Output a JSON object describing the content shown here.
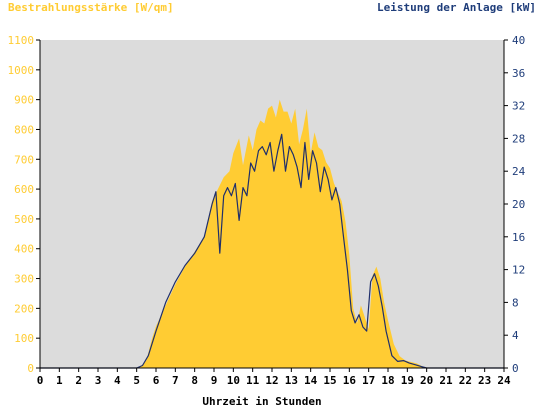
{
  "chart_data": {
    "type": "area",
    "ylabel_left": "Bestrahlungsstärke [W/qm]",
    "ylabel_right": "Leistung der Anlage [kW]",
    "xlabel": "Uhrzeit in Stunden",
    "xlim": [
      0,
      24
    ],
    "ylim_left": [
      0,
      1100
    ],
    "ylim_right": [
      0,
      40
    ],
    "x_ticks": [
      "0",
      "1",
      "2",
      "3",
      "4",
      "5",
      "6",
      "7",
      "8",
      "9",
      "10",
      "11",
      "12",
      "13",
      "14",
      "15",
      "16",
      "17",
      "18",
      "19",
      "20",
      "21",
      "22",
      "23",
      "24"
    ],
    "y_left_ticks": [
      "0",
      "100",
      "200",
      "300",
      "400",
      "500",
      "600",
      "700",
      "800",
      "900",
      "1000",
      "1100"
    ],
    "y_right_ticks": [
      "0",
      "4",
      "8",
      "12",
      "16",
      "20",
      "24",
      "28",
      "32",
      "36",
      "40"
    ],
    "grid": false,
    "colors": {
      "irradiance_fill": "#ffcc33",
      "power_line": "#1f2f6b",
      "left_axis_text": "#ffcc33",
      "right_axis_text": "#1f3d7a",
      "plot_background": "#dcdcdc"
    },
    "series": [
      {
        "type": "area",
        "axis": "left",
        "x": [
          0,
          5.0,
          5.2,
          5.5,
          5.8,
          6.0,
          6.5,
          7.0,
          7.5,
          8.0,
          8.5,
          8.9,
          9.2,
          9.5,
          9.8,
          10.0,
          10.3,
          10.5,
          10.8,
          11.0,
          11.2,
          11.4,
          11.6,
          11.8,
          12.0,
          12.2,
          12.4,
          12.6,
          12.8,
          13.0,
          13.2,
          13.4,
          13.6,
          13.8,
          14.0,
          14.2,
          14.4,
          14.6,
          14.8,
          15.0,
          15.2,
          15.4,
          15.6,
          15.8,
          16.0,
          16.2,
          16.4,
          16.6,
          16.8,
          17.0,
          17.2,
          17.4,
          17.6,
          17.8,
          18.0,
          18.3,
          18.6,
          18.9,
          19.2,
          19.5,
          19.8,
          20.0,
          24
        ],
        "values": [
          0,
          0,
          5,
          25,
          100,
          140,
          210,
          280,
          340,
          390,
          440,
          560,
          600,
          640,
          660,
          720,
          770,
          680,
          780,
          730,
          800,
          830,
          820,
          870,
          880,
          840,
          900,
          860,
          860,
          820,
          870,
          750,
          800,
          870,
          720,
          790,
          740,
          730,
          690,
          670,
          620,
          590,
          560,
          490,
          380,
          200,
          150,
          210,
          170,
          130,
          310,
          340,
          300,
          220,
          160,
          80,
          40,
          25,
          20,
          15,
          5,
          0,
          0
        ]
      },
      {
        "type": "line",
        "axis": "right",
        "x": [
          0,
          5.0,
          5.3,
          5.6,
          6.0,
          6.5,
          7.0,
          7.5,
          8.0,
          8.5,
          8.9,
          9.1,
          9.3,
          9.5,
          9.7,
          9.9,
          10.1,
          10.3,
          10.5,
          10.7,
          10.9,
          11.1,
          11.3,
          11.5,
          11.7,
          11.9,
          12.1,
          12.3,
          12.5,
          12.7,
          12.9,
          13.1,
          13.3,
          13.5,
          13.7,
          13.9,
          14.1,
          14.3,
          14.5,
          14.7,
          14.9,
          15.1,
          15.3,
          15.5,
          15.7,
          15.9,
          16.1,
          16.3,
          16.5,
          16.7,
          16.9,
          17.1,
          17.3,
          17.5,
          17.7,
          17.9,
          18.2,
          18.5,
          18.8,
          19.1,
          19.4,
          19.7,
          20.0,
          24
        ],
        "values": [
          0,
          0,
          0.3,
          1.5,
          4.5,
          8.0,
          10.5,
          12.5,
          14.0,
          16.0,
          20.0,
          21.5,
          14.0,
          21.0,
          22.0,
          21.0,
          22.5,
          18.0,
          22.0,
          21.0,
          25.0,
          24.0,
          26.5,
          27.0,
          26.0,
          27.5,
          24.0,
          26.5,
          28.5,
          24.0,
          27.0,
          26.0,
          24.5,
          22.0,
          27.5,
          23.0,
          26.5,
          25.0,
          21.5,
          24.5,
          23.0,
          20.5,
          22.0,
          20.0,
          16.0,
          12.0,
          7.0,
          5.5,
          6.5,
          5.0,
          4.5,
          10.5,
          11.5,
          10.0,
          7.5,
          4.5,
          1.5,
          0.8,
          0.9,
          0.6,
          0.4,
          0.2,
          0,
          0
        ]
      }
    ]
  }
}
